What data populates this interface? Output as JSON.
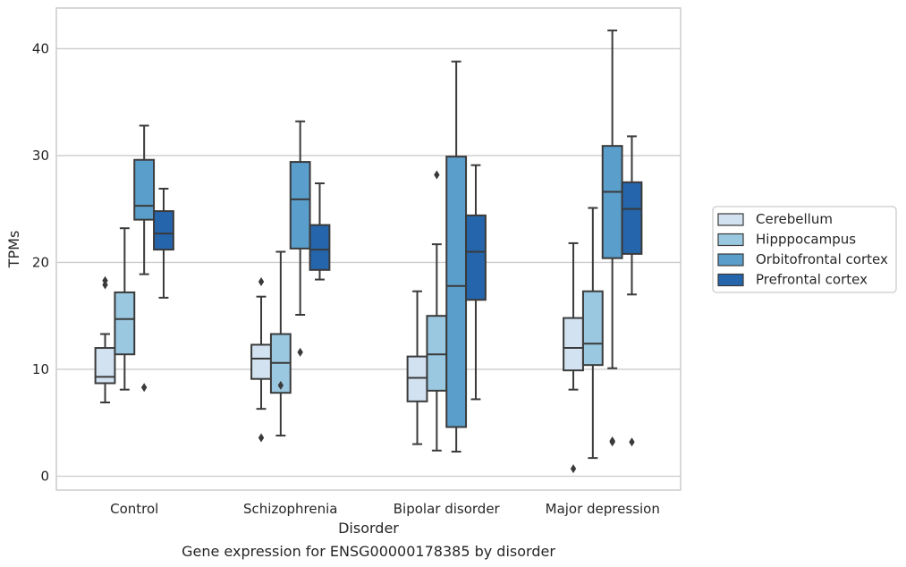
{
  "chart_data": {
    "type": "boxplot",
    "caption": "Gene expression for ENSG00000178385 by disorder",
    "xlabel": "Disorder",
    "ylabel": "TPMs",
    "ylim": [
      -1.3,
      43.8
    ],
    "yticks": [
      0,
      10,
      20,
      30,
      40
    ],
    "grid": "horizontal",
    "legend_position": "right",
    "categories": [
      "Control",
      "Schizophrenia",
      "Bipolar disorder",
      "Major depression"
    ],
    "series": [
      {
        "name": "Cerebellum",
        "color": "#d2e2f1",
        "boxes": [
          {
            "whislo": 6.9,
            "q1": 8.7,
            "med": 9.3,
            "q3": 12.0,
            "whishi": 13.3,
            "fliers": [
              17.9,
              18.3
            ]
          },
          {
            "whislo": 6.3,
            "q1": 9.1,
            "med": 11.0,
            "q3": 12.3,
            "whishi": 16.8,
            "fliers": [
              3.6,
              18.2
            ]
          },
          {
            "whislo": 3.0,
            "q1": 7.0,
            "med": 9.2,
            "q3": 11.2,
            "whishi": 17.3,
            "fliers": []
          },
          {
            "whislo": 8.1,
            "q1": 9.9,
            "med": 12.0,
            "q3": 14.8,
            "whishi": 21.8,
            "fliers": [
              0.7
            ]
          }
        ]
      },
      {
        "name": "Hipppocampus",
        "color": "#9ac8e0",
        "boxes": [
          {
            "whislo": 8.1,
            "q1": 11.4,
            "med": 14.7,
            "q3": 17.2,
            "whishi": 23.2,
            "fliers": []
          },
          {
            "whislo": 3.8,
            "q1": 7.8,
            "med": 10.6,
            "q3": 13.3,
            "whishi": 21.0,
            "fliers": [
              8.5
            ]
          },
          {
            "whislo": 2.4,
            "q1": 8.0,
            "med": 11.4,
            "q3": 15.0,
            "whishi": 21.7,
            "fliers": [
              28.2
            ]
          },
          {
            "whislo": 1.7,
            "q1": 10.4,
            "med": 12.4,
            "q3": 17.3,
            "whishi": 25.1,
            "fliers": []
          }
        ]
      },
      {
        "name": "Orbitofrontal cortex",
        "color": "#5a9ecb",
        "boxes": [
          {
            "whislo": 18.9,
            "q1": 24.0,
            "med": 25.3,
            "q3": 29.6,
            "whishi": 32.8,
            "fliers": [
              8.3
            ]
          },
          {
            "whislo": 15.1,
            "q1": 21.3,
            "med": 25.9,
            "q3": 29.4,
            "whishi": 33.2,
            "fliers": [
              11.6
            ]
          },
          {
            "whislo": 2.3,
            "q1": 4.6,
            "med": 17.8,
            "q3": 29.9,
            "whishi": 38.8,
            "fliers": []
          },
          {
            "whislo": 10.1,
            "q1": 20.4,
            "med": 26.6,
            "q3": 30.9,
            "whishi": 41.7,
            "fliers": [
              3.2,
              3.3
            ]
          }
        ]
      },
      {
        "name": "Prefrontal cortex",
        "color": "#2565ab",
        "boxes": [
          {
            "whislo": 16.7,
            "q1": 21.2,
            "med": 22.7,
            "q3": 24.8,
            "whishi": 26.9,
            "fliers": []
          },
          {
            "whislo": 18.4,
            "q1": 19.3,
            "med": 21.2,
            "q3": 23.5,
            "whishi": 27.4,
            "fliers": []
          },
          {
            "whislo": 7.2,
            "q1": 16.5,
            "med": 21.0,
            "q3": 24.4,
            "whishi": 29.1,
            "fliers": []
          },
          {
            "whislo": 17.0,
            "q1": 20.8,
            "med": 25.0,
            "q3": 27.5,
            "whishi": 31.8,
            "fliers": [
              3.2
            ]
          }
        ]
      }
    ]
  }
}
